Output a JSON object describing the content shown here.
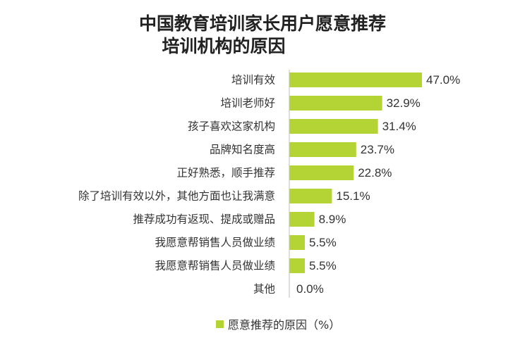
{
  "colors": {
    "bar": "#b4d334",
    "axis": "#bfbfbf",
    "text": "#333333"
  },
  "chart_data": {
    "type": "bar",
    "orientation": "horizontal",
    "title_lines": [
      "中国教育培训家长用户愿意推荐",
      "培训机构的原因"
    ],
    "categories": [
      "培训有效",
      "培训老师好",
      "孩子喜欢这家机构",
      "品牌知名度高",
      "正好熟悉，顺手推荐",
      "除了培训有效以外，其他方面也让我满意",
      "推荐成功有返现、提成或赠品",
      "我愿意帮销售人员做业绩",
      "我愿意帮销售人员做业绩",
      "其他"
    ],
    "series": [
      {
        "name": "愿意推荐的原因（%）",
        "values": [
          47.0,
          32.9,
          31.4,
          23.7,
          22.8,
          15.1,
          8.9,
          5.5,
          5.5,
          0.0
        ],
        "labels": [
          "47.0%",
          "32.9%",
          "31.4%",
          "23.7%",
          "22.8%",
          "15.1%",
          "8.9%",
          "5.5%",
          "5.5%",
          "0.0%"
        ]
      }
    ],
    "xlim": [
      0,
      50
    ],
    "grid": false,
    "legend_position": "bottom"
  }
}
